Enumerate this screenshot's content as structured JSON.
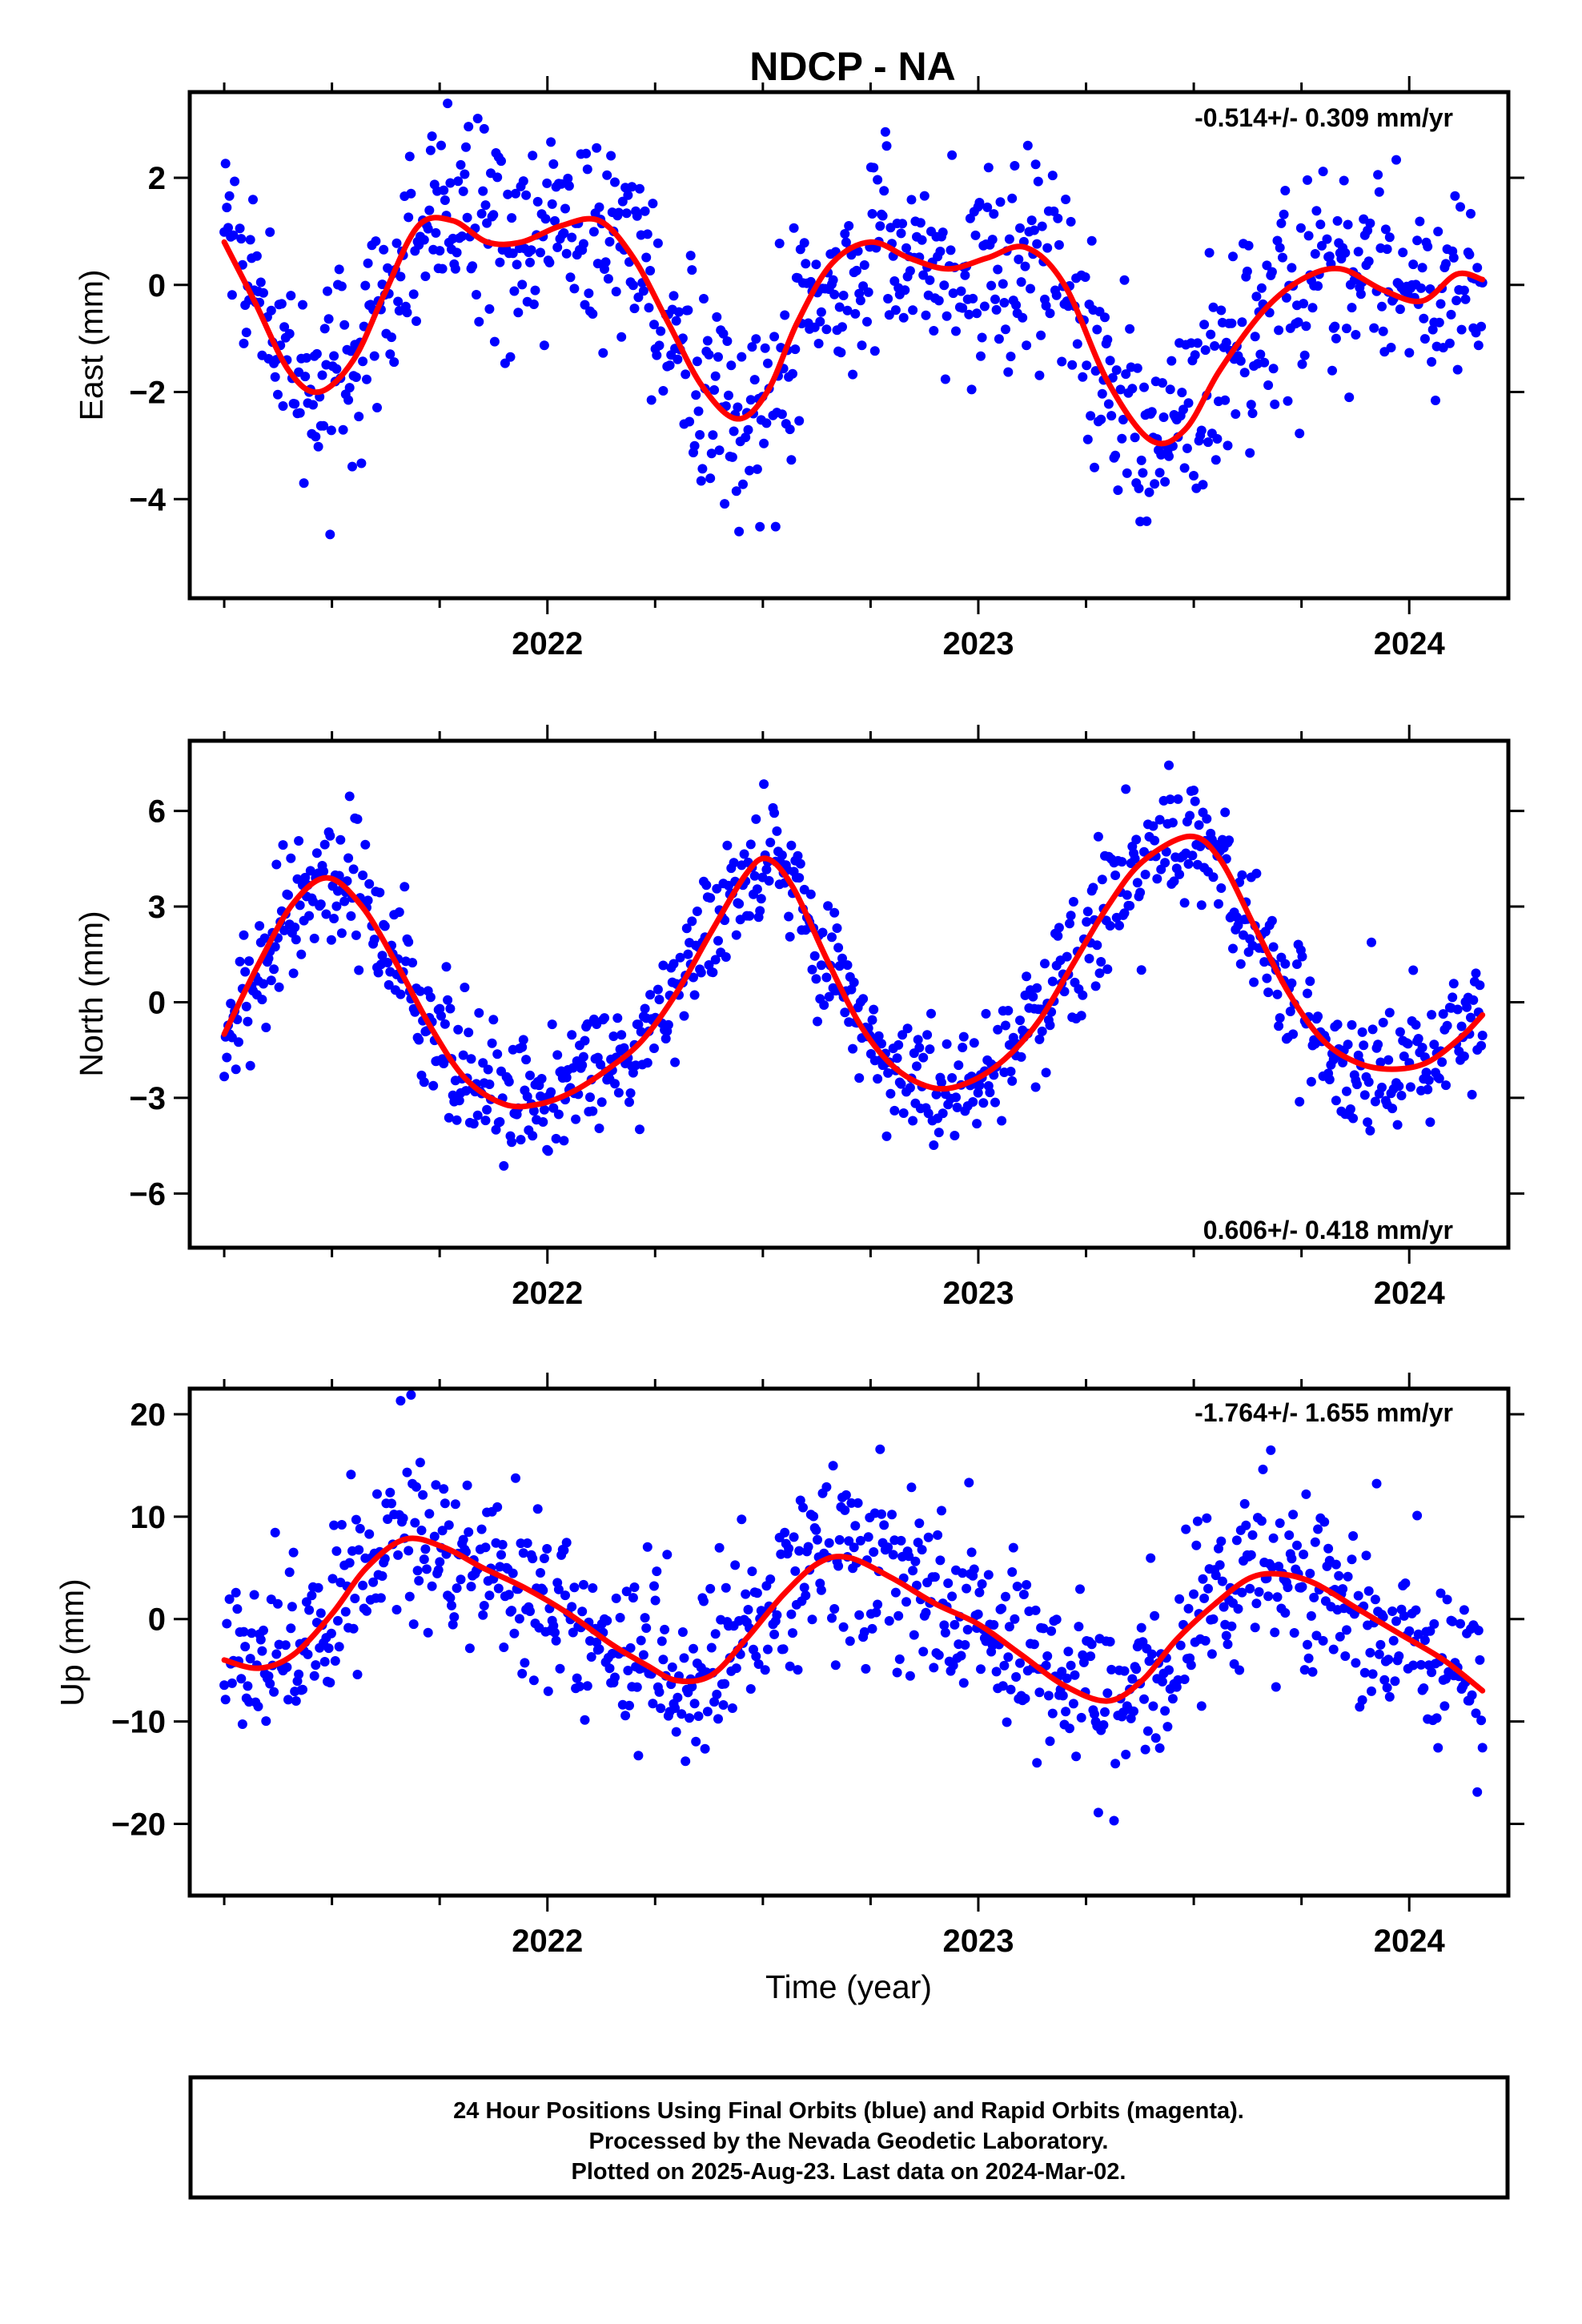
{
  "title": "NDCP - NA",
  "colors": {
    "final_orbits": "#0000ff",
    "rapid_orbits": "#ff00ff",
    "model_curve": "#ff0000",
    "frame": "#000000"
  },
  "footer": {
    "line1": "24 Hour Positions Using Final Orbits (blue) and Rapid Orbits (magenta).",
    "line2": "Processed by the Nevada Geodetic Laboratory.",
    "line3": "Plotted on 2025-Aug-23. Last data on 2024-Mar-02."
  },
  "chart_data": [
    {
      "type": "scatter",
      "ylabel": "East (mm)",
      "xlabel": "",
      "rate_label": "-0.514+/- 0.309 mm/yr",
      "x_unit": "decimal year",
      "xlim": [
        2021.17,
        2024.23
      ],
      "ylim": [
        -5.85,
        3.6
      ],
      "xticks": [
        2022,
        2023,
        2024
      ],
      "xtick_labels": [
        "2022",
        "2023",
        "2024"
      ],
      "yticks": [
        -4,
        -2,
        0,
        2
      ],
      "ytick_labels": [
        "−4",
        "−2",
        "0",
        "2"
      ],
      "legend": "none",
      "grid": false,
      "series": [
        {
          "role": "data",
          "x_range": [
            2021.25,
            2024.17
          ],
          "points_per_year": 330,
          "scatter_sd": 0.95,
          "anchors": [
            [
              2021.25,
              0.8
            ],
            [
              2021.32,
              -0.3
            ],
            [
              2021.4,
              -1.6
            ],
            [
              2021.47,
              -2.0
            ],
            [
              2021.55,
              -1.4
            ],
            [
              2021.62,
              -0.2
            ],
            [
              2021.7,
              1.1
            ],
            [
              2021.78,
              1.2
            ],
            [
              2021.86,
              0.8
            ],
            [
              2021.94,
              0.8
            ],
            [
              2022.03,
              1.1
            ],
            [
              2022.12,
              1.2
            ],
            [
              2022.2,
              0.5
            ],
            [
              2022.28,
              -0.7
            ],
            [
              2022.36,
              -1.9
            ],
            [
              2022.44,
              -2.5
            ],
            [
              2022.51,
              -2.0
            ],
            [
              2022.58,
              -0.7
            ],
            [
              2022.66,
              0.4
            ],
            [
              2022.75,
              0.8
            ],
            [
              2022.84,
              0.5
            ],
            [
              2022.93,
              0.3
            ],
            [
              2023.02,
              0.5
            ],
            [
              2023.11,
              0.7
            ],
            [
              2023.2,
              0.0
            ],
            [
              2023.3,
              -1.8
            ],
            [
              2023.4,
              -2.9
            ],
            [
              2023.48,
              -2.7
            ],
            [
              2023.56,
              -1.6
            ],
            [
              2023.66,
              -0.5
            ],
            [
              2023.75,
              0.1
            ],
            [
              2023.84,
              0.3
            ],
            [
              2023.94,
              -0.1
            ],
            [
              2024.03,
              -0.3
            ],
            [
              2024.11,
              0.2
            ],
            [
              2024.17,
              0.1
            ]
          ]
        },
        {
          "role": "model",
          "values": [
            [
              2021.25,
              0.8
            ],
            [
              2021.32,
              -0.3
            ],
            [
              2021.4,
              -1.6
            ],
            [
              2021.47,
              -2.0
            ],
            [
              2021.55,
              -1.4
            ],
            [
              2021.62,
              -0.2
            ],
            [
              2021.7,
              1.1
            ],
            [
              2021.78,
              1.2
            ],
            [
              2021.86,
              0.8
            ],
            [
              2021.94,
              0.8
            ],
            [
              2022.03,
              1.1
            ],
            [
              2022.12,
              1.2
            ],
            [
              2022.2,
              0.5
            ],
            [
              2022.28,
              -0.7
            ],
            [
              2022.36,
              -1.9
            ],
            [
              2022.44,
              -2.5
            ],
            [
              2022.51,
              -2.0
            ],
            [
              2022.58,
              -0.7
            ],
            [
              2022.66,
              0.4
            ],
            [
              2022.75,
              0.8
            ],
            [
              2022.84,
              0.5
            ],
            [
              2022.93,
              0.3
            ],
            [
              2023.02,
              0.5
            ],
            [
              2023.11,
              0.7
            ],
            [
              2023.2,
              0.0
            ],
            [
              2023.3,
              -1.8
            ],
            [
              2023.4,
              -2.9
            ],
            [
              2023.48,
              -2.7
            ],
            [
              2023.56,
              -1.6
            ],
            [
              2023.66,
              -0.5
            ],
            [
              2023.75,
              0.1
            ],
            [
              2023.84,
              0.3
            ],
            [
              2023.94,
              -0.1
            ],
            [
              2024.03,
              -0.3
            ],
            [
              2024.11,
              0.2
            ],
            [
              2024.17,
              0.1
            ]
          ]
        }
      ]
    },
    {
      "type": "scatter",
      "ylabel": "North (mm)",
      "xlabel": "",
      "rate_label": "0.606+/- 0.418 mm/yr",
      "x_unit": "decimal year",
      "xlim": [
        2021.17,
        2024.23
      ],
      "ylim": [
        -7.7,
        8.2
      ],
      "xticks": [
        2022,
        2023,
        2024
      ],
      "xtick_labels": [
        "2022",
        "2023",
        "2024"
      ],
      "yticks": [
        -6,
        -3,
        0,
        3,
        6
      ],
      "ytick_labels": [
        "−6",
        "−3",
        "0",
        "3",
        "6"
      ],
      "legend": "none",
      "grid": false,
      "series": [
        {
          "role": "data",
          "x_range": [
            2021.25,
            2024.17
          ],
          "points_per_year": 330,
          "scatter_sd": 1.0,
          "anchors": [
            [
              2021.25,
              -1.0
            ],
            [
              2021.33,
              1.2
            ],
            [
              2021.41,
              3.1
            ],
            [
              2021.49,
              3.9
            ],
            [
              2021.57,
              3.0
            ],
            [
              2021.65,
              1.2
            ],
            [
              2021.73,
              -0.8
            ],
            [
              2021.81,
              -2.4
            ],
            [
              2021.9,
              -3.2
            ],
            [
              2021.98,
              -3.2
            ],
            [
              2022.06,
              -2.8
            ],
            [
              2022.14,
              -2.1
            ],
            [
              2022.22,
              -1.2
            ],
            [
              2022.3,
              0.3
            ],
            [
              2022.38,
              2.2
            ],
            [
              2022.46,
              4.0
            ],
            [
              2022.51,
              4.5
            ],
            [
              2022.57,
              3.6
            ],
            [
              2022.65,
              1.3
            ],
            [
              2022.73,
              -0.8
            ],
            [
              2022.81,
              -2.1
            ],
            [
              2022.9,
              -2.7
            ],
            [
              2022.98,
              -2.5
            ],
            [
              2023.06,
              -1.8
            ],
            [
              2023.14,
              -0.6
            ],
            [
              2023.22,
              1.2
            ],
            [
              2023.3,
              3.0
            ],
            [
              2023.38,
              4.4
            ],
            [
              2023.49,
              5.2
            ],
            [
              2023.56,
              4.5
            ],
            [
              2023.64,
              2.4
            ],
            [
              2023.72,
              0.3
            ],
            [
              2023.8,
              -1.2
            ],
            [
              2023.88,
              -1.9
            ],
            [
              2023.96,
              -2.1
            ],
            [
              2024.04,
              -1.9
            ],
            [
              2024.12,
              -1.1
            ],
            [
              2024.17,
              -0.4
            ]
          ]
        },
        {
          "role": "model",
          "values": [
            [
              2021.25,
              -1.0
            ],
            [
              2021.33,
              1.2
            ],
            [
              2021.41,
              3.1
            ],
            [
              2021.49,
              3.9
            ],
            [
              2021.57,
              3.0
            ],
            [
              2021.65,
              1.2
            ],
            [
              2021.73,
              -0.8
            ],
            [
              2021.81,
              -2.4
            ],
            [
              2021.9,
              -3.2
            ],
            [
              2021.98,
              -3.2
            ],
            [
              2022.06,
              -2.8
            ],
            [
              2022.14,
              -2.1
            ],
            [
              2022.22,
              -1.2
            ],
            [
              2022.3,
              0.3
            ],
            [
              2022.38,
              2.2
            ],
            [
              2022.46,
              4.0
            ],
            [
              2022.51,
              4.5
            ],
            [
              2022.57,
              3.6
            ],
            [
              2022.65,
              1.3
            ],
            [
              2022.73,
              -0.8
            ],
            [
              2022.81,
              -2.1
            ],
            [
              2022.9,
              -2.7
            ],
            [
              2022.98,
              -2.5
            ],
            [
              2023.06,
              -1.8
            ],
            [
              2023.14,
              -0.6
            ],
            [
              2023.22,
              1.2
            ],
            [
              2023.3,
              3.0
            ],
            [
              2023.38,
              4.4
            ],
            [
              2023.49,
              5.2
            ],
            [
              2023.56,
              4.5
            ],
            [
              2023.64,
              2.4
            ],
            [
              2023.72,
              0.3
            ],
            [
              2023.8,
              -1.2
            ],
            [
              2023.88,
              -1.9
            ],
            [
              2023.96,
              -2.1
            ],
            [
              2024.04,
              -1.9
            ],
            [
              2024.12,
              -1.1
            ],
            [
              2024.17,
              -0.4
            ]
          ]
        }
      ]
    },
    {
      "type": "scatter",
      "ylabel": "Up (mm)",
      "xlabel": "Time (year)",
      "rate_label": "-1.764+/- 1.655 mm/yr",
      "x_unit": "decimal year",
      "xlim": [
        2021.17,
        2024.23
      ],
      "ylim": [
        -27,
        22.5
      ],
      "xticks": [
        2022,
        2023,
        2024
      ],
      "xtick_labels": [
        "2022",
        "2023",
        "2024"
      ],
      "yticks": [
        -20,
        -10,
        0,
        10,
        20
      ],
      "ytick_labels": [
        "−20",
        "−10",
        "0",
        "10",
        "20"
      ],
      "legend": "none",
      "grid": false,
      "series": [
        {
          "role": "data",
          "x_range": [
            2021.25,
            2024.17
          ],
          "points_per_year": 330,
          "scatter_sd": 4.3,
          "anchors": [
            [
              2021.25,
              -4.0
            ],
            [
              2021.33,
              -4.8
            ],
            [
              2021.41,
              -3.5
            ],
            [
              2021.5,
              0.5
            ],
            [
              2021.58,
              5.0
            ],
            [
              2021.67,
              7.8
            ],
            [
              2021.76,
              7.0
            ],
            [
              2021.85,
              5.0
            ],
            [
              2021.95,
              3.0
            ],
            [
              2022.05,
              0.5
            ],
            [
              2022.15,
              -2.5
            ],
            [
              2022.23,
              -4.5
            ],
            [
              2022.3,
              -6.0
            ],
            [
              2022.38,
              -5.5
            ],
            [
              2022.46,
              -2.0
            ],
            [
              2022.55,
              2.5
            ],
            [
              2022.63,
              5.5
            ],
            [
              2022.7,
              6.0
            ],
            [
              2022.8,
              4.0
            ],
            [
              2022.9,
              1.5
            ],
            [
              2023.0,
              -0.5
            ],
            [
              2023.1,
              -3.5
            ],
            [
              2023.2,
              -6.5
            ],
            [
              2023.3,
              -8.0
            ],
            [
              2023.38,
              -6.0
            ],
            [
              2023.46,
              -2.0
            ],
            [
              2023.55,
              1.5
            ],
            [
              2023.63,
              4.0
            ],
            [
              2023.7,
              4.4
            ],
            [
              2023.78,
              3.5
            ],
            [
              2023.88,
              1.0
            ],
            [
              2023.98,
              -1.5
            ],
            [
              2024.08,
              -4.0
            ],
            [
              2024.17,
              -7.0
            ]
          ]
        },
        {
          "role": "model",
          "values": [
            [
              2021.25,
              -4.0
            ],
            [
              2021.33,
              -4.8
            ],
            [
              2021.41,
              -3.5
            ],
            [
              2021.5,
              0.5
            ],
            [
              2021.58,
              5.0
            ],
            [
              2021.67,
              7.8
            ],
            [
              2021.76,
              7.0
            ],
            [
              2021.85,
              5.0
            ],
            [
              2021.95,
              3.0
            ],
            [
              2022.05,
              0.5
            ],
            [
              2022.15,
              -2.5
            ],
            [
              2022.23,
              -4.5
            ],
            [
              2022.3,
              -6.0
            ],
            [
              2022.38,
              -5.5
            ],
            [
              2022.46,
              -2.0
            ],
            [
              2022.55,
              2.5
            ],
            [
              2022.63,
              5.5
            ],
            [
              2022.7,
              6.0
            ],
            [
              2022.8,
              4.0
            ],
            [
              2022.9,
              1.5
            ],
            [
              2023.0,
              -0.5
            ],
            [
              2023.1,
              -3.5
            ],
            [
              2023.2,
              -6.5
            ],
            [
              2023.3,
              -8.0
            ],
            [
              2023.38,
              -6.0
            ],
            [
              2023.46,
              -2.0
            ],
            [
              2023.55,
              1.5
            ],
            [
              2023.63,
              4.0
            ],
            [
              2023.7,
              4.4
            ],
            [
              2023.78,
              3.5
            ],
            [
              2023.88,
              1.0
            ],
            [
              2023.98,
              -1.5
            ],
            [
              2024.08,
              -4.0
            ],
            [
              2024.17,
              -7.0
            ]
          ]
        }
      ]
    }
  ]
}
